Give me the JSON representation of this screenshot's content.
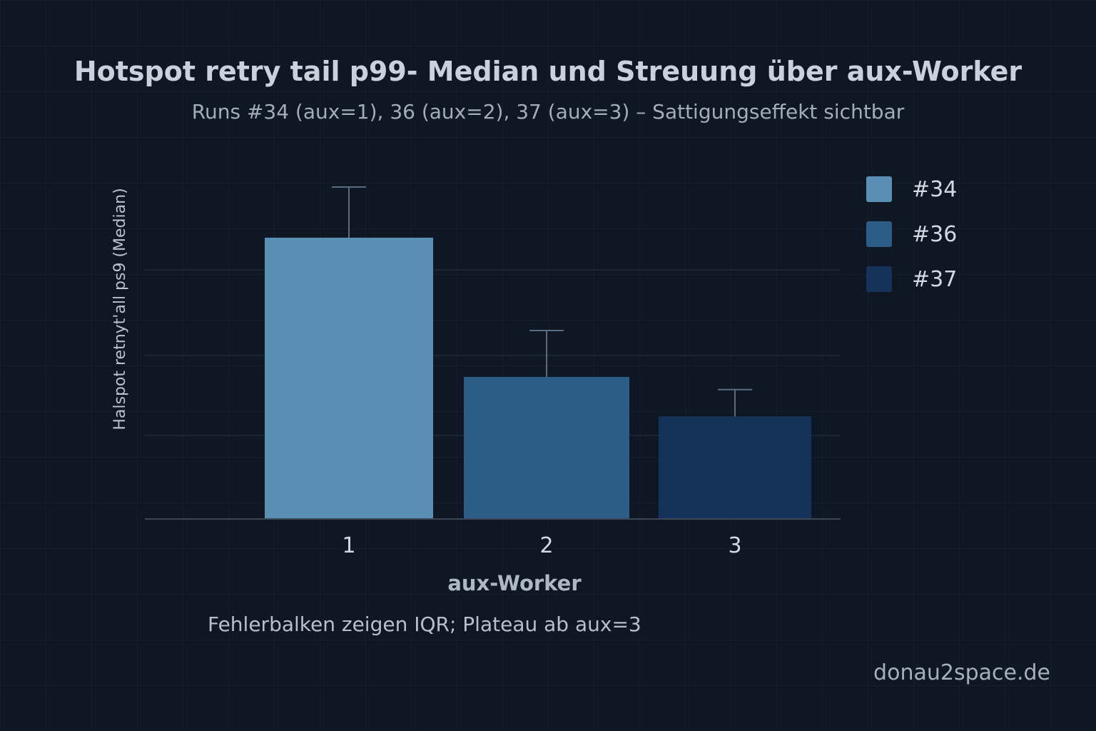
{
  "page": {
    "title": "Hotspot retry tail p99- Median und Streuung über aux-Worker",
    "subtitle": "Runs #34 (aux=1), 36 (aux=2), 37 (aux=3) – Sattigungseffekt sichtbar",
    "note": "Fehlerbalken zeigen IQR; Plateau ab aux=3",
    "watermark": "donau2space.de"
  },
  "chart_data": {
    "type": "bar",
    "title": "Hotspot retry tail p99- Median und Streuung über aux-Worker",
    "subtitle": "Runs #34 (aux=1), 36 (aux=2), 37 (aux=3) – Sattigungseffekt sichtbar",
    "xlabel": "aux-Worker",
    "ylabel": "Halspot retnyt'all ps9 (Median)",
    "categories": [
      "1",
      "2",
      "3"
    ],
    "values": [
      100,
      50.5,
      36.5
    ],
    "error_upper": [
      118,
      67,
      46
    ],
    "ylim": [
      0,
      118
    ],
    "grid": true,
    "legend_position": "right",
    "colors": [
      "#5a8fb4",
      "#2c5d86",
      "#15335a"
    ],
    "series": [
      {
        "name": "#34",
        "color": "#5a8fb4"
      },
      {
        "name": "#36",
        "color": "#2c5d86"
      },
      {
        "name": "#37",
        "color": "#15335a"
      }
    ]
  }
}
